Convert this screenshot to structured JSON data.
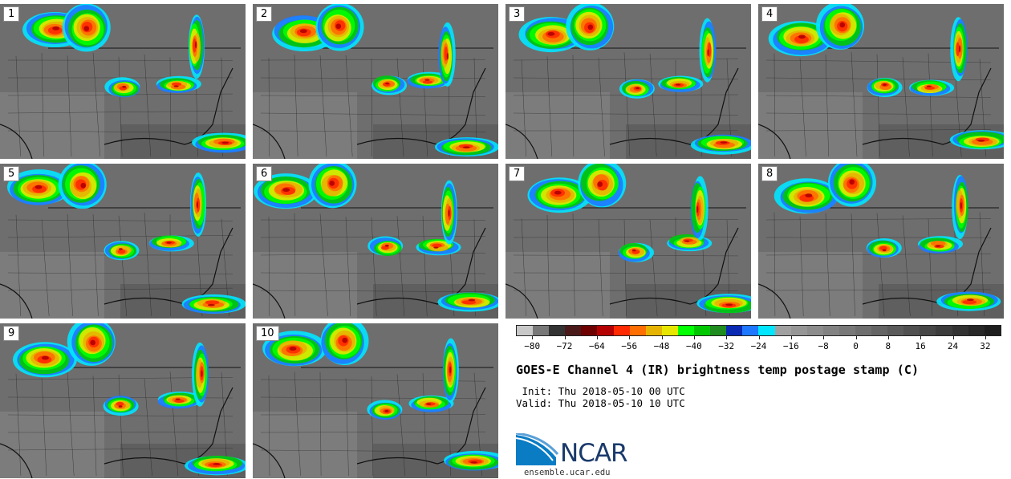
{
  "panels": [
    {
      "label": "1"
    },
    {
      "label": "2"
    },
    {
      "label": "3"
    },
    {
      "label": "4"
    },
    {
      "label": "5"
    },
    {
      "label": "6"
    },
    {
      "label": "7"
    },
    {
      "label": "8"
    },
    {
      "label": "9"
    },
    {
      "label": "10"
    }
  ],
  "colorbar": {
    "colors": [
      "#c8c8c8",
      "#787878",
      "#333333",
      "#4a1a1a",
      "#6e0000",
      "#b40000",
      "#ff2a00",
      "#ff6e00",
      "#e6b400",
      "#e6e600",
      "#00ff00",
      "#00c800",
      "#1e8c1e",
      "#0a2ab4",
      "#1e78ff",
      "#00e6ff",
      "#a0a0a0",
      "#969696",
      "#8c8c8c",
      "#828282",
      "#787878",
      "#6e6e6e",
      "#646464",
      "#5a5a5a",
      "#505050",
      "#464646",
      "#3c3c3c",
      "#323232",
      "#282828",
      "#1e1e1e"
    ],
    "tick_labels": [
      "−80",
      "−72",
      "−64",
      "−56",
      "−48",
      "−40",
      "−32",
      "−24",
      "−16",
      "−8",
      "0",
      "8",
      "16",
      "24",
      "32"
    ],
    "min": -80,
    "max": 40
  },
  "title": "GOES-E Channel 4 (IR) brightness temp postage stamp (C)",
  "init_line": " Init: Thu 2018-05-10 00 UTC",
  "valid_line": "Valid: Thu 2018-05-10 10 UTC",
  "logo_text": "NCAR",
  "site": "ensemble.ucar.edu"
}
